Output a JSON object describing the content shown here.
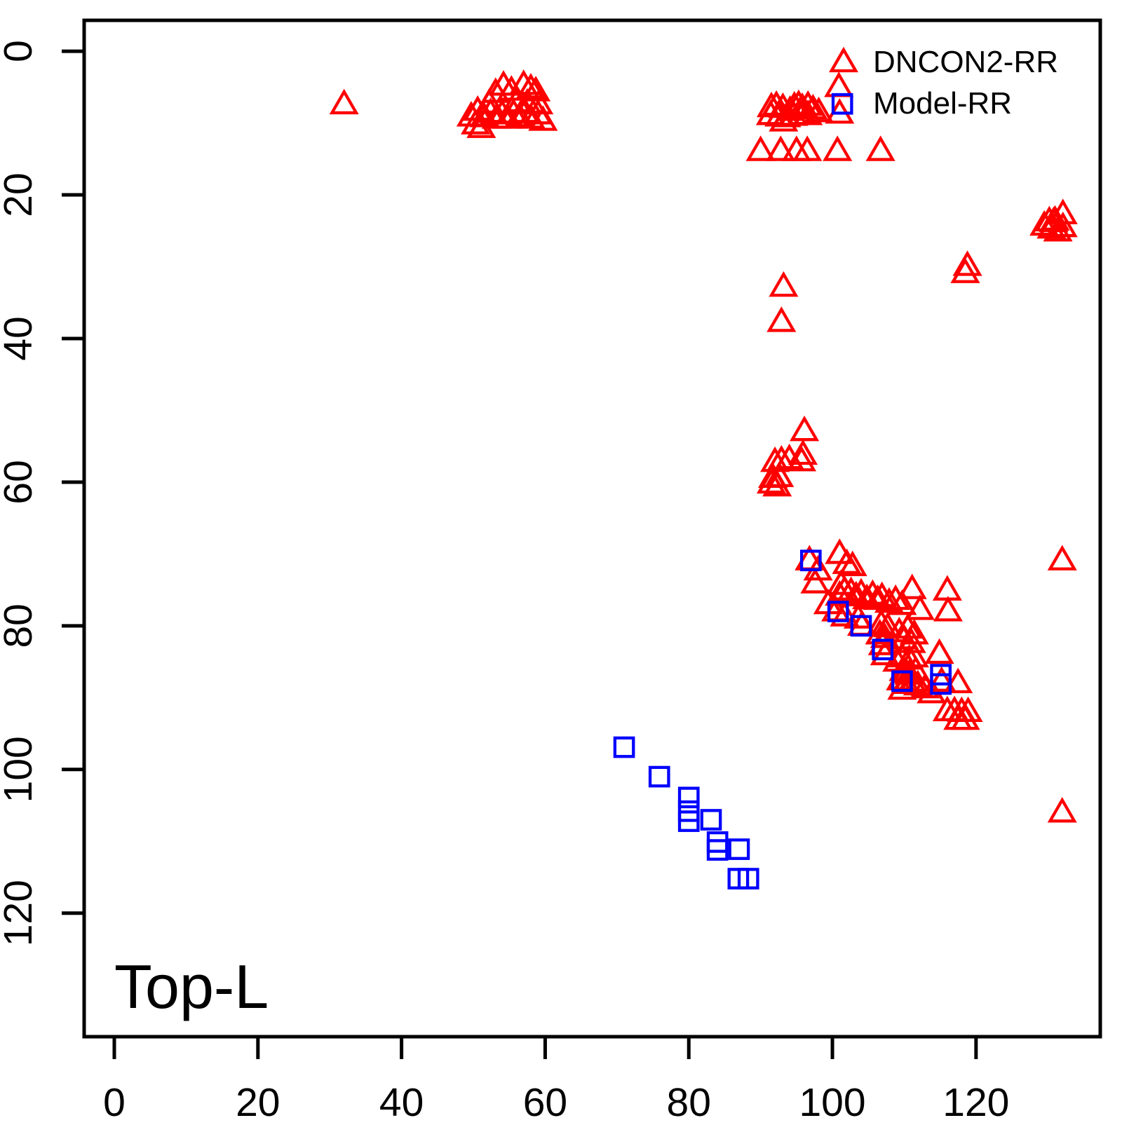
{
  "legend": {
    "items": [
      {
        "label": "DNCON2-RR",
        "marker": "triangle",
        "color": "#ff0000"
      },
      {
        "label": "Model-RR",
        "marker": "square",
        "color": "#0000ff"
      }
    ]
  },
  "chart_data": {
    "type": "scatter",
    "title": "",
    "xlabel": "",
    "ylabel": "",
    "annotation": "Top-L",
    "x_ticks": [
      0,
      20,
      40,
      60,
      80,
      100,
      120
    ],
    "y_ticks": [
      0,
      20,
      40,
      60,
      80,
      100,
      120
    ],
    "xlim": [
      -4.2,
      137.3
    ],
    "ylim": [
      -4.3,
      137.2
    ],
    "y_axis_reversed": true,
    "grid": false,
    "legend_position": "top-right",
    "series": [
      {
        "name": "DNCON2-RR",
        "marker": "triangle",
        "color": "#ff0000",
        "points": [
          [
            32.0,
            7.6
          ],
          [
            53.1,
            6.0
          ],
          [
            54.2,
            5.0
          ],
          [
            55.3,
            5.7
          ],
          [
            57.0,
            4.9
          ],
          [
            58.0,
            5.4
          ],
          [
            58.7,
            5.8
          ],
          [
            52.2,
            7.5
          ],
          [
            56.0,
            7.3
          ],
          [
            57.5,
            7.5
          ],
          [
            59.1,
            7.6
          ],
          [
            49.7,
            9.3
          ],
          [
            50.6,
            8.5
          ],
          [
            51.5,
            9.4
          ],
          [
            52.4,
            8.8
          ],
          [
            53.2,
            9.6
          ],
          [
            54.0,
            9.0
          ],
          [
            54.8,
            9.6
          ],
          [
            55.6,
            8.9
          ],
          [
            56.4,
            9.4
          ],
          [
            57.2,
            8.8
          ],
          [
            58.0,
            9.6
          ],
          [
            59.0,
            9.0
          ],
          [
            59.7,
            9.9
          ],
          [
            50.3,
            10.4
          ],
          [
            51.1,
            10.9
          ],
          [
            91.5,
            8.0
          ],
          [
            92.2,
            7.8
          ],
          [
            93.1,
            8.1
          ],
          [
            94.1,
            8.5
          ],
          [
            94.7,
            7.9
          ],
          [
            95.3,
            7.7
          ],
          [
            95.8,
            8.1
          ],
          [
            96.6,
            7.8
          ],
          [
            97.3,
            8.3
          ],
          [
            98.1,
            8.7
          ],
          [
            91.4,
            9.1
          ],
          [
            92.6,
            9.3
          ],
          [
            93.6,
            9.4
          ],
          [
            94.6,
            9.2
          ],
          [
            95.7,
            9.1
          ],
          [
            96.6,
            9.1
          ],
          [
            93.2,
            10.0
          ],
          [
            100.9,
            5.2
          ],
          [
            101.0,
            8.9
          ],
          [
            90.0,
            14.1
          ],
          [
            92.8,
            14.1
          ],
          [
            95.0,
            14.1
          ],
          [
            96.5,
            14.1
          ],
          [
            100.7,
            14.1
          ],
          [
            106.7,
            14.1
          ],
          [
            129.5,
            24.5
          ],
          [
            130.2,
            23.9
          ],
          [
            131.0,
            23.8
          ],
          [
            132.1,
            22.9
          ],
          [
            132.1,
            24.7
          ],
          [
            130.5,
            24.9
          ],
          [
            131.4,
            25.3
          ],
          [
            130.8,
            24.0
          ],
          [
            118.8,
            30.1
          ],
          [
            118.5,
            31.1
          ],
          [
            93.2,
            33.0
          ],
          [
            92.9,
            37.9
          ],
          [
            96.1,
            53.1
          ],
          [
            95.9,
            56.4
          ],
          [
            95.7,
            57.3
          ],
          [
            94.0,
            57.0
          ],
          [
            92.0,
            57.4
          ],
          [
            92.9,
            57.2
          ],
          [
            91.7,
            59.6
          ],
          [
            92.6,
            59.5
          ],
          [
            91.5,
            60.4
          ],
          [
            92.3,
            60.8
          ],
          [
            96.8,
            71.1
          ],
          [
            98.0,
            72.5
          ],
          [
            101.0,
            70.2
          ],
          [
            102.0,
            71.6
          ],
          [
            102.8,
            71.9
          ],
          [
            97.6,
            74.3
          ],
          [
            101.2,
            74.5
          ],
          [
            99.4,
            77.2
          ],
          [
            100.5,
            78.2
          ],
          [
            101.7,
            78.9
          ],
          [
            103.6,
            79.2
          ],
          [
            101.7,
            75.3
          ],
          [
            102.6,
            75.5
          ],
          [
            101.0,
            76.0
          ],
          [
            103.3,
            76.1
          ],
          [
            104.0,
            75.7
          ],
          [
            104.8,
            76.5
          ],
          [
            105.6,
            75.9
          ],
          [
            106.3,
            76.6
          ],
          [
            106.9,
            76.2
          ],
          [
            107.9,
            77.0
          ],
          [
            108.8,
            76.6
          ],
          [
            109.7,
            77.3
          ],
          [
            111.1,
            75.1
          ],
          [
            112.2,
            78.0
          ],
          [
            116.0,
            75.3
          ],
          [
            116.1,
            78.2
          ],
          [
            104.1,
            80.2
          ],
          [
            106.8,
            80.0
          ],
          [
            107.7,
            80.4
          ],
          [
            106.6,
            81.4
          ],
          [
            107.3,
            81.9
          ],
          [
            107.0,
            82.9
          ],
          [
            109.3,
            81.1
          ],
          [
            110.5,
            80.6
          ],
          [
            111.4,
            81.4
          ],
          [
            110.0,
            82.1
          ],
          [
            111.0,
            82.6
          ],
          [
            107.3,
            84.3
          ],
          [
            109.0,
            85.2
          ],
          [
            110.3,
            86.8
          ],
          [
            111.2,
            88.2
          ],
          [
            114.9,
            84.1
          ],
          [
            115.2,
            88.0
          ],
          [
            117.5,
            88.2
          ],
          [
            109.7,
            84.6
          ],
          [
            110.7,
            84.9
          ],
          [
            111.4,
            84.6
          ],
          [
            109.9,
            86.5
          ],
          [
            110.7,
            87.0
          ],
          [
            111.6,
            86.5
          ],
          [
            109.5,
            87.8
          ],
          [
            110.3,
            88.3
          ],
          [
            111.1,
            88.0
          ],
          [
            111.9,
            88.5
          ],
          [
            109.7,
            89.1
          ],
          [
            112.9,
            88.9
          ],
          [
            113.8,
            89.6
          ],
          [
            116.0,
            92.1
          ],
          [
            117.0,
            92.1
          ],
          [
            118.0,
            92.2
          ],
          [
            118.9,
            92.2
          ],
          [
            117.5,
            93.3
          ],
          [
            118.5,
            93.3
          ],
          [
            132.0,
            71.1
          ],
          [
            132.0,
            106.2
          ]
        ]
      },
      {
        "name": "Model-RR",
        "marker": "square",
        "color": "#0000ff",
        "points": [
          [
            97.0,
            70.9
          ],
          [
            100.8,
            78.0
          ],
          [
            104.0,
            80.0
          ],
          [
            107.0,
            83.3
          ],
          [
            109.7,
            87.7
          ],
          [
            115.1,
            86.8
          ],
          [
            115.1,
            88.1
          ],
          [
            71.0,
            96.9
          ],
          [
            75.9,
            101.0
          ],
          [
            80.0,
            103.9
          ],
          [
            80.0,
            105.8
          ],
          [
            80.0,
            107.2
          ],
          [
            83.1,
            107.0
          ],
          [
            84.0,
            110.1
          ],
          [
            84.0,
            111.2
          ],
          [
            87.0,
            111.1
          ],
          [
            86.9,
            115.2
          ],
          [
            88.3,
            115.2
          ]
        ]
      }
    ]
  }
}
